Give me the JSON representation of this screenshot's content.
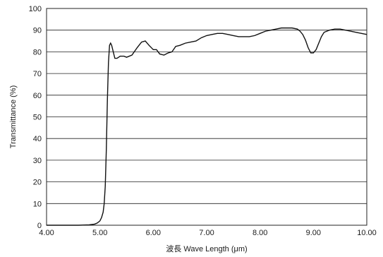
{
  "chart_data": {
    "type": "line",
    "xlabel": "波長 Wave Length (μm)",
    "ylabel": "Transmittance (%)",
    "xlim": [
      4.0,
      10.0
    ],
    "ylim": [
      0,
      100
    ],
    "x_ticks": [
      "4.00",
      "5.00",
      "6.00",
      "7.00",
      "8.00",
      "9.00",
      "10.00"
    ],
    "y_ticks": [
      "0",
      "10",
      "20",
      "30",
      "40",
      "50",
      "60",
      "70",
      "80",
      "90",
      "100"
    ],
    "grid": "horizontal",
    "series": [
      {
        "x": [
          4.0,
          4.6,
          4.8,
          4.9,
          4.95,
          5.0,
          5.03,
          5.06,
          5.08,
          5.1,
          5.12,
          5.14,
          5.16,
          5.18,
          5.2,
          5.22,
          5.25,
          5.28,
          5.32,
          5.38,
          5.45,
          5.5,
          5.6,
          5.7,
          5.78,
          5.85,
          5.92,
          6.0,
          6.06,
          6.12,
          6.2,
          6.28,
          6.35,
          6.42,
          6.5,
          6.6,
          6.7,
          6.8,
          6.9,
          7.0,
          7.1,
          7.2,
          7.3,
          7.4,
          7.5,
          7.6,
          7.7,
          7.8,
          7.9,
          8.0,
          8.1,
          8.2,
          8.3,
          8.4,
          8.5,
          8.6,
          8.7,
          8.75,
          8.8,
          8.85,
          8.9,
          8.95,
          9.0,
          9.05,
          9.1,
          9.15,
          9.2,
          9.3,
          9.4,
          9.5,
          9.6,
          9.7,
          9.8,
          9.9,
          10.0
        ],
        "y": [
          0,
          0,
          0.2,
          0.5,
          1,
          2,
          3.5,
          6,
          10,
          18,
          35,
          58,
          75,
          83,
          84,
          83,
          80,
          77,
          77,
          78,
          78,
          77.5,
          78.5,
          82,
          84.5,
          85,
          83,
          81,
          81,
          79,
          78.5,
          79.5,
          80,
          82.5,
          83,
          84,
          84.5,
          85,
          86.5,
          87.5,
          88,
          88.5,
          88.5,
          88,
          87.5,
          87,
          87,
          87,
          87.5,
          88.5,
          89.5,
          90,
          90.5,
          91,
          91,
          91,
          90.5,
          89.5,
          88,
          85.5,
          82,
          79.5,
          79.5,
          81,
          84,
          87,
          89,
          90,
          90.5,
          90.5,
          90,
          89.5,
          89,
          88.5,
          88
        ]
      }
    ]
  }
}
